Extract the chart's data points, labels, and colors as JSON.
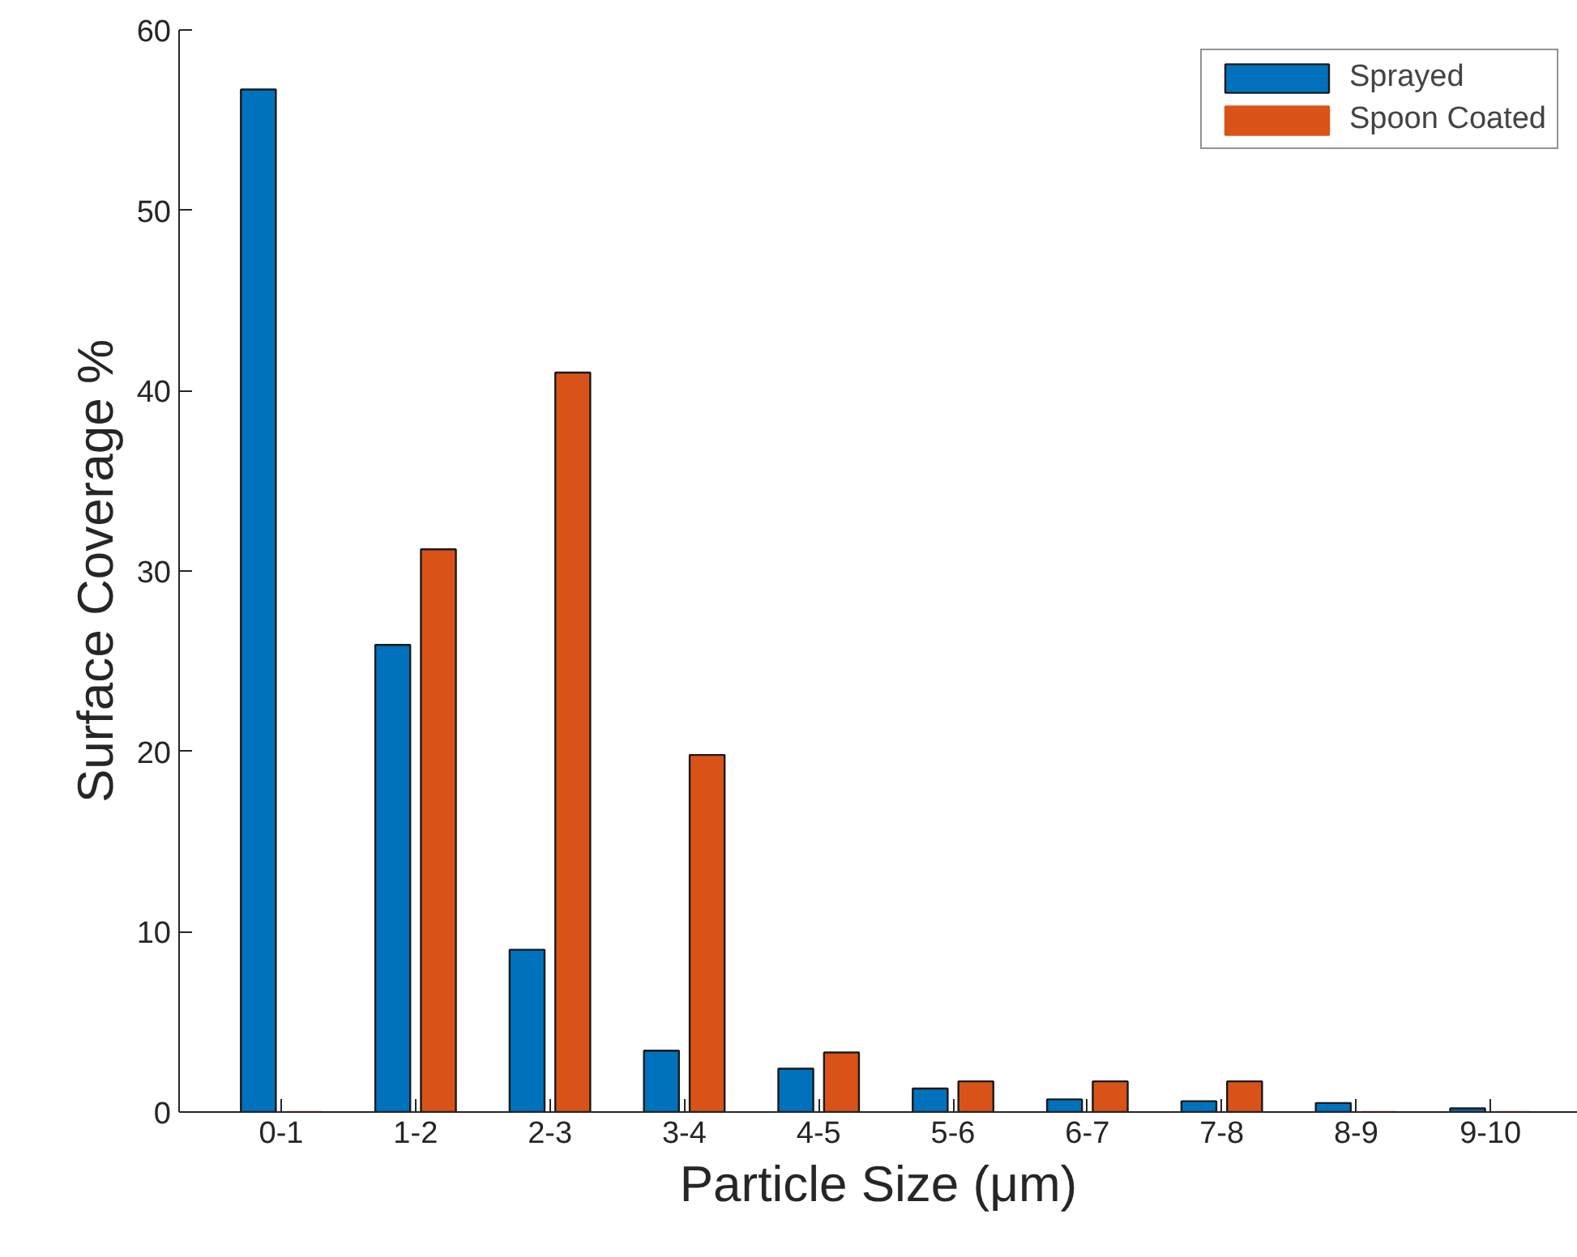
{
  "chart_data": {
    "type": "bar",
    "xlabel": "Particle Size (μm)",
    "ylabel": "Surface Coverage %",
    "categories": [
      "0-1",
      "1-2",
      "2-3",
      "3-4",
      "4-5",
      "5-6",
      "6-7",
      "7-8",
      "8-9",
      "9-10"
    ],
    "series": [
      {
        "name": "Sprayed",
        "color": "#0072bd",
        "values": [
          56.7,
          25.9,
          9.0,
          3.4,
          2.4,
          1.3,
          0.7,
          0.6,
          0.5,
          0.2
        ]
      },
      {
        "name": "Spoon Coated",
        "color": "#d95319",
        "values": [
          0,
          31.2,
          41.0,
          19.8,
          3.3,
          1.7,
          1.7,
          1.7,
          0,
          0
        ]
      }
    ],
    "ylim": [
      0,
      60
    ],
    "yticks": [
      0,
      10,
      20,
      30,
      40,
      50,
      60
    ],
    "grid": false,
    "legend": "top right"
  }
}
